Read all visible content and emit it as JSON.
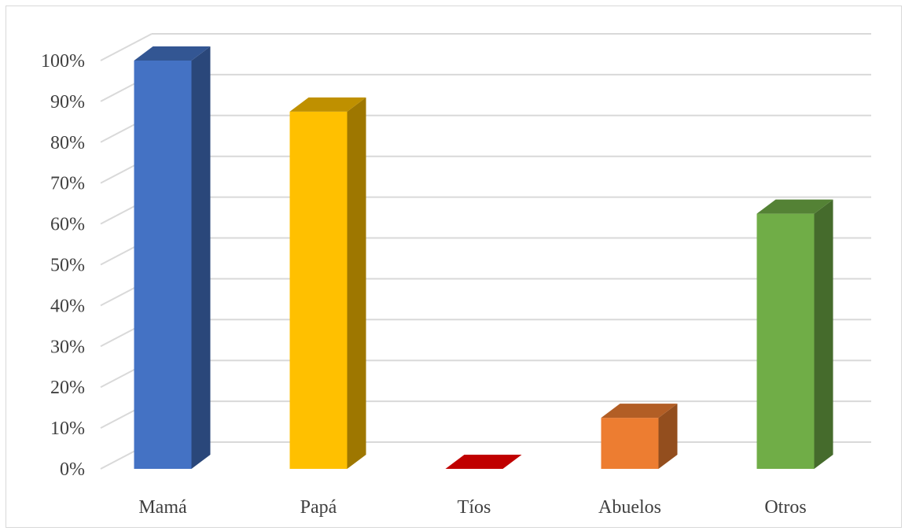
{
  "chart_data": {
    "type": "bar",
    "style": "3d-column",
    "categories": [
      "Mamá",
      "Papá",
      "Tíos",
      "Abuelos",
      "Otros"
    ],
    "values": [
      100,
      87.5,
      0,
      12.5,
      62.5
    ],
    "colors": [
      "#4472C4",
      "#FFC000",
      "#C00000",
      "#ED7D31",
      "#70AD47"
    ],
    "ylim": [
      0,
      100
    ],
    "yticks": [
      "0%",
      "10%",
      "20%",
      "30%",
      "40%",
      "50%",
      "60%",
      "70%",
      "80%",
      "90%",
      "100%"
    ],
    "grid": true,
    "legend": "none",
    "title": "",
    "xlabel": "",
    "ylabel": ""
  }
}
